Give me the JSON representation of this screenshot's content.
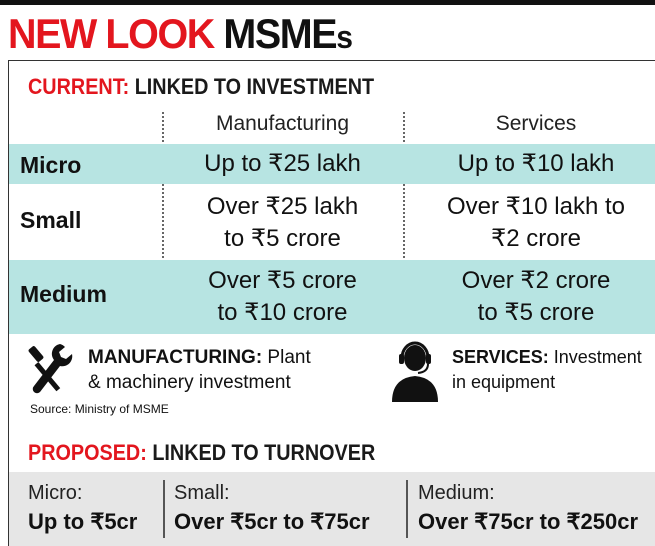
{
  "headline": {
    "part1": "NEW LOOK ",
    "part2": "MSME",
    "part3": "s"
  },
  "current": {
    "title_red": "CURRENT:",
    "title_black": " LINKED TO INVESTMENT",
    "columns": [
      "Manufacturing",
      "Services"
    ],
    "rows": [
      {
        "label": "Micro",
        "manufacturing": [
          "Up to ₹25 lakh"
        ],
        "services": [
          "Up to ₹10 lakh"
        ]
      },
      {
        "label": "Small",
        "manufacturing": [
          "Over ₹25 lakh",
          "to ₹5 crore"
        ],
        "services": [
          "Over ₹10 lakh to",
          "₹2 crore"
        ]
      },
      {
        "label": "Medium",
        "manufacturing": [
          "Over ₹5 crore",
          "to ₹10 crore"
        ],
        "services": [
          "Over ₹2 crore",
          "to ₹5 crore"
        ]
      }
    ]
  },
  "legend": {
    "manufacturing": {
      "icon": "wrench-screwdriver-icon",
      "bold": "MANUFACTURING:",
      "rest1": " Plant",
      "rest2": "& machinery investment"
    },
    "services": {
      "icon": "headset-person-icon",
      "bold": "SERVICES:",
      "rest1": " Investment",
      "rest2": "in equipment"
    }
  },
  "source": "Source: Ministry of MSME",
  "proposed": {
    "title_red": "PROPOSED:",
    "title_black": " LINKED TO TURNOVER",
    "items": [
      {
        "label": "Micro:",
        "value": "Up to ₹5cr"
      },
      {
        "label": "Small:",
        "value": "Over ₹5cr to ₹75cr"
      },
      {
        "label": "Medium:",
        "value": "Over ₹75cr to ₹250cr"
      }
    ]
  },
  "colors": {
    "accent_red": "#e3161e",
    "teal_row": "#b7e4e2",
    "band_grey": "#e6e6e6"
  }
}
